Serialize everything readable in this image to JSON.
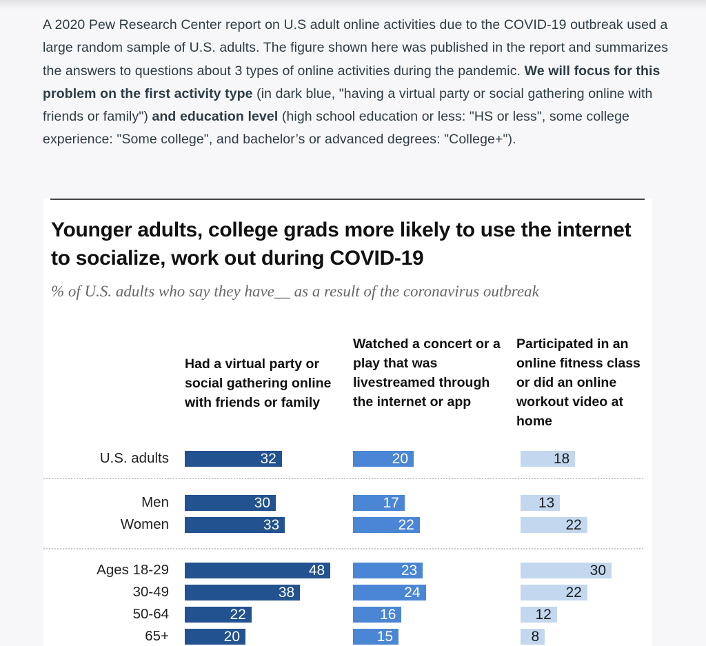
{
  "intro": {
    "part1": "A 2020 Pew Research Center report on U.S adult online activities due to the COVID-19 outbreak  used a large random sample of U.S. adults. The figure shown here was published in the report and summarizes the answers to questions about 3 types of online activities during the pandemic. ",
    "bold1": "We will focus for this problem on the first activity type",
    "part2": " (in dark blue, \"having a virtual party or social gathering online with friends or family\") ",
    "bold2": "and education level",
    "part3": " (high school education or less: \"HS or less\", some college experience: \"Some college\", and bachelor’s or advanced degrees: \"College+\")."
  },
  "chart_data": {
    "type": "bar",
    "title": "Younger adults, college grads more likely to use the internet to socialize, work out during COVID-19",
    "subtitle": "% of U.S. adults who say they have__ as a result of the coronavirus outbreak",
    "xlabel": "",
    "ylabel": "",
    "orientation": "horizontal",
    "grid": false,
    "legend": "column-headers-top",
    "categories": [
      "U.S. adults",
      "Men",
      "Women",
      "Ages 18-29",
      "30-49",
      "50-64",
      "65+"
    ],
    "groups": [
      [
        "U.S. adults"
      ],
      [
        "Men",
        "Women"
      ],
      [
        "Ages 18-29",
        "30-49",
        "50-64",
        "65+"
      ]
    ],
    "series": [
      {
        "name": "Had a virtual party or social gathering online with friends or family",
        "color": "#22528f",
        "values": [
          32,
          30,
          33,
          48,
          38,
          22,
          20
        ]
      },
      {
        "name": "Watched a concert or a play that was livestreamed through the internet or app",
        "color": "#4a86d4",
        "values": [
          20,
          17,
          22,
          23,
          24,
          16,
          15
        ]
      },
      {
        "name": "Participated in an online fitness class or did an online workout video at home",
        "color": "#c3d8ef",
        "values": [
          18,
          13,
          22,
          30,
          22,
          12,
          8
        ]
      }
    ]
  }
}
